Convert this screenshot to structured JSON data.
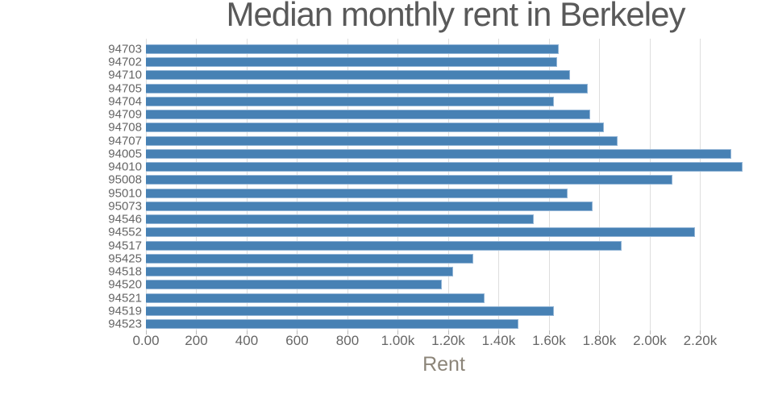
{
  "chart_data": {
    "type": "bar",
    "orientation": "horizontal",
    "title": "Median monthly rent in Berkeley",
    "xlabel": "Rent",
    "ylabel": "",
    "categories": [
      "94703",
      "94702",
      "94710",
      "94705",
      "94704",
      "94709",
      "94708",
      "94707",
      "94005",
      "94010",
      "95008",
      "95010",
      "95073",
      "94546",
      "94552",
      "94517",
      "95425",
      "94518",
      "94520",
      "94521",
      "94519",
      "94523"
    ],
    "values": [
      1635,
      1630,
      1680,
      1750,
      1615,
      1760,
      1815,
      1870,
      2320,
      2365,
      2085,
      1670,
      1770,
      1535,
      2175,
      1885,
      1295,
      1215,
      1170,
      1340,
      1615,
      1475
    ],
    "x_ticks": [
      {
        "value": 0,
        "label": "0.00"
      },
      {
        "value": 200,
        "label": "200"
      },
      {
        "value": 400,
        "label": "400"
      },
      {
        "value": 600,
        "label": "600"
      },
      {
        "value": 800,
        "label": "800"
      },
      {
        "value": 1000,
        "label": "1.00k"
      },
      {
        "value": 1200,
        "label": "1.20k"
      },
      {
        "value": 1400,
        "label": "1.40k"
      },
      {
        "value": 1600,
        "label": "1.60k"
      },
      {
        "value": 1800,
        "label": "1.80k"
      },
      {
        "value": 2000,
        "label": "2.00k"
      },
      {
        "value": 2200,
        "label": "2.20k"
      }
    ],
    "xlim": [
      0,
      2365
    ],
    "grid": "vertical-only",
    "legend": "none",
    "colors": {
      "bar_fill": "#4781b4",
      "bar_edge": "#93b5d6",
      "grid": "#dedede",
      "title_text": "#595959",
      "tick_text": "#666666",
      "axis_label_text": "#8c8579",
      "background": "#ffffff"
    }
  }
}
